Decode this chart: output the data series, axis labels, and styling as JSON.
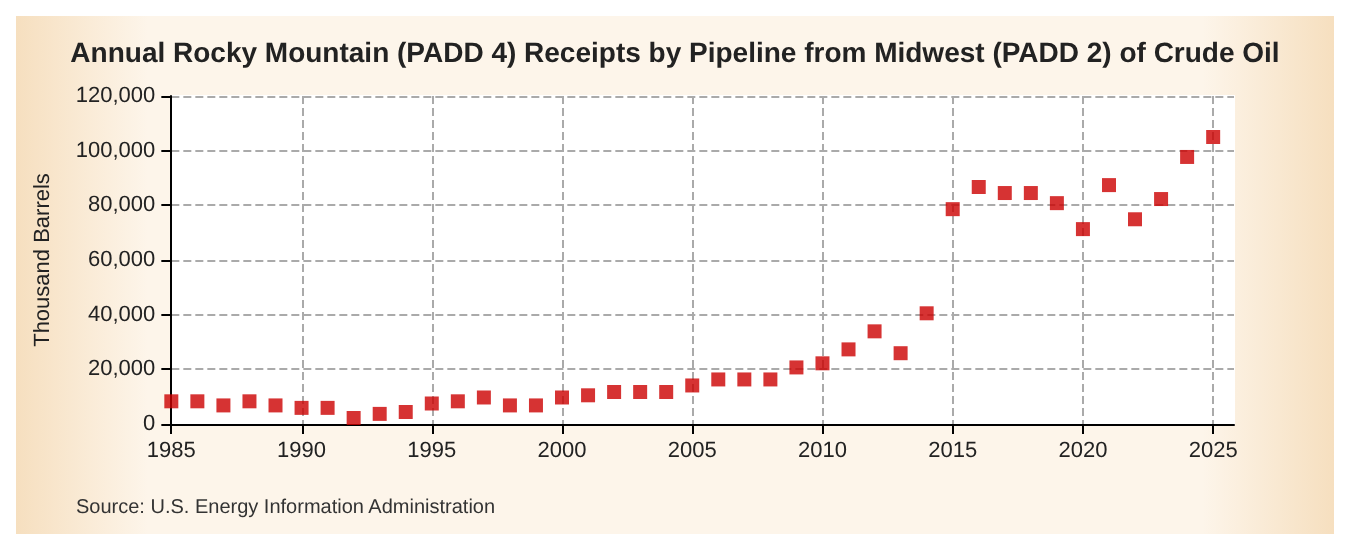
{
  "chart_data": {
    "type": "scatter",
    "title": "Annual Rocky Mountain (PADD 4) Receipts by Pipeline from Midwest (PADD 2) of Crude Oil",
    "ylabel": "Thousand Barrels",
    "annotations": [
      "Source: U.S. Energy Information Administration"
    ],
    "x": [
      1985,
      1986,
      1987,
      1988,
      1989,
      1990,
      1991,
      1992,
      1993,
      1994,
      1995,
      1996,
      1997,
      1998,
      1999,
      2000,
      2001,
      2002,
      2003,
      2004,
      2005,
      2006,
      2007,
      2008,
      2009,
      2010,
      2011,
      2012,
      2013,
      2014,
      2015,
      2016,
      2017,
      2018,
      2019,
      2020,
      2021,
      2022,
      2023,
      2024,
      2025
    ],
    "series": [
      {
        "color": "#cc0000",
        "values": [
          8300,
          8300,
          6800,
          8300,
          6800,
          5900,
          5900,
          2200,
          3700,
          4400,
          7500,
          8300,
          9700,
          6800,
          6800,
          9700,
          10500,
          11700,
          11700,
          11700,
          14100,
          16300,
          16300,
          16300,
          20700,
          22200,
          27300,
          33900,
          25900,
          40500,
          78600,
          86700,
          84500,
          84500,
          80800,
          71300,
          87400,
          74900,
          82300,
          97700,
          105000
        ]
      }
    ],
    "xlim": [
      1985,
      2025.8
    ],
    "xticks": [
      1985,
      1990,
      1995,
      2000,
      2005,
      2010,
      2015,
      2020,
      2025
    ],
    "ylim": [
      0,
      120000
    ],
    "yticks": [
      0,
      {
        "value": 20000,
        "label": "20,000"
      },
      {
        "value": 40000,
        "label": "40,000"
      },
      {
        "value": 60000,
        "label": "60,000"
      },
      {
        "value": 80000,
        "label": "80,000"
      },
      {
        "value": 100000,
        "label": "100,000"
      },
      {
        "value": 120000,
        "label": "120,000"
      }
    ],
    "grid": true,
    "marker": "square"
  }
}
